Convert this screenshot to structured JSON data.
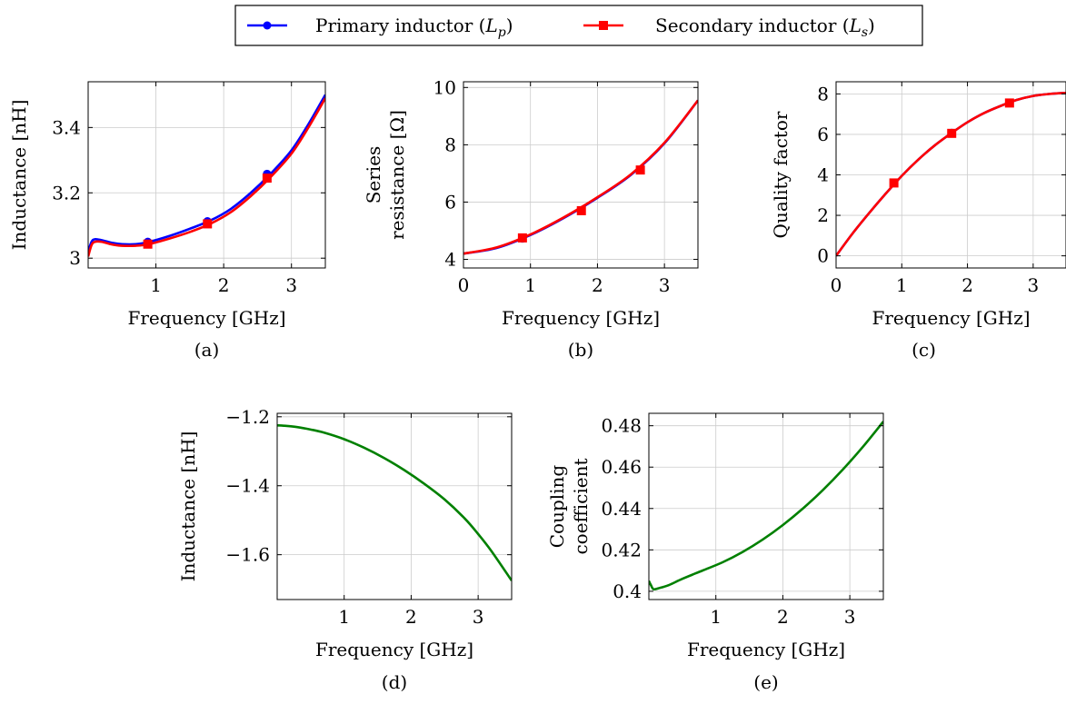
{
  "legend": {
    "entries": [
      {
        "label": "Primary inductor (L_p)",
        "color": "#0000ff",
        "marker": "circle"
      },
      {
        "label": "Secondary inductor (L_s)",
        "color": "#ff0000",
        "marker": "square"
      }
    ]
  },
  "colors": {
    "primary": "#0000ff",
    "secondary": "#ff0000",
    "mutual": "#008000",
    "grid": "#cccccc"
  },
  "chart_data": [
    {
      "id": "a",
      "type": "line",
      "caption": "(a)",
      "xlabel": "Frequency [GHz]",
      "ylabel": "Inductance [nH]",
      "xlim": [
        0,
        3.5
      ],
      "ylim": [
        2.97,
        3.54
      ],
      "xticks": [
        1,
        2,
        3
      ],
      "yticks": [
        3,
        3.2,
        3.4
      ],
      "xtick_labels": [
        "1",
        "2",
        "3"
      ],
      "ytick_labels": [
        "3",
        "3.2",
        "3.4"
      ],
      "grid": true,
      "series": [
        {
          "name": "Primary inductor (L_p)",
          "color": "#0000ff",
          "marker": "circle",
          "x": [
            0,
            0.05,
            0.1,
            0.2,
            0.35,
            0.5,
            0.7,
            0.9,
            1.2,
            1.5,
            1.8,
            2.1,
            2.4,
            2.7,
            3.0,
            3.25,
            3.5
          ],
          "y": [
            3.02,
            3.05,
            3.058,
            3.055,
            3.047,
            3.043,
            3.043,
            3.05,
            3.068,
            3.09,
            3.115,
            3.15,
            3.2,
            3.26,
            3.33,
            3.41,
            3.5
          ],
          "markers_x": [
            0.88,
            1.76,
            2.64
          ],
          "markers_y": [
            3.05,
            3.113,
            3.258
          ]
        },
        {
          "name": "Secondary inductor (L_s)",
          "color": "#ff0000",
          "marker": "square",
          "x": [
            0,
            0.05,
            0.1,
            0.2,
            0.35,
            0.5,
            0.7,
            0.9,
            1.2,
            1.5,
            1.8,
            2.1,
            2.4,
            2.7,
            3.0,
            3.25,
            3.5
          ],
          "y": [
            3.005,
            3.04,
            3.05,
            3.05,
            3.042,
            3.038,
            3.038,
            3.043,
            3.06,
            3.08,
            3.105,
            3.14,
            3.19,
            3.25,
            3.32,
            3.4,
            3.49
          ],
          "markers_x": [
            0.88,
            1.76,
            2.64
          ],
          "markers_y": [
            3.043,
            3.105,
            3.245
          ]
        }
      ]
    },
    {
      "id": "b",
      "type": "line",
      "caption": "(b)",
      "xlabel": "Frequency [GHz]",
      "ylabel_lines": [
        "Series",
        "resistance [Ω]"
      ],
      "xlim": [
        0,
        3.5
      ],
      "ylim": [
        3.7,
        10.2
      ],
      "xticks": [
        0,
        1,
        2,
        3
      ],
      "yticks": [
        4,
        6,
        8,
        10
      ],
      "xtick_labels": [
        "0",
        "1",
        "2",
        "3"
      ],
      "ytick_labels": [
        "4",
        "6",
        "8",
        "10"
      ],
      "grid": true,
      "series": [
        {
          "name": "Primary inductor (L_p)",
          "color": "#0000ff",
          "marker": "circle",
          "x": [
            0,
            0.5,
            1.0,
            1.5,
            2.0,
            2.5,
            3.0,
            3.5
          ],
          "y": [
            4.2,
            4.4,
            4.85,
            5.45,
            6.15,
            6.95,
            8.05,
            9.55
          ],
          "markers_x": [
            0.88,
            1.76,
            2.64
          ],
          "markers_y": [
            4.73,
            5.72,
            7.12
          ]
        },
        {
          "name": "Secondary inductor (L_s)",
          "color": "#ff0000",
          "marker": "square",
          "x": [
            0,
            0.5,
            1.0,
            1.5,
            2.0,
            2.5,
            3.0,
            3.5
          ],
          "y": [
            4.2,
            4.42,
            4.87,
            5.47,
            6.17,
            6.97,
            8.07,
            9.55
          ],
          "markers_x": [
            0.88,
            1.76,
            2.64
          ],
          "markers_y": [
            4.75,
            5.7,
            7.12
          ]
        }
      ]
    },
    {
      "id": "c",
      "type": "line",
      "caption": "(c)",
      "xlabel": "Frequency [GHz]",
      "ylabel": "Quality factor",
      "xlim": [
        0,
        3.5
      ],
      "ylim": [
        -0.6,
        8.6
      ],
      "xticks": [
        0,
        1,
        2,
        3
      ],
      "yticks": [
        0,
        2,
        4,
        6,
        8
      ],
      "xtick_labels": [
        "0",
        "1",
        "2",
        "3"
      ],
      "ytick_labels": [
        "0",
        "2",
        "4",
        "6",
        "8"
      ],
      "grid": true,
      "series": [
        {
          "name": "Primary inductor (L_p)",
          "color": "#0000ff",
          "marker": "circle",
          "x": [
            0,
            0.25,
            0.5,
            0.75,
            1.0,
            1.25,
            1.5,
            1.75,
            2.0,
            2.25,
            2.5,
            2.75,
            3.0,
            3.25,
            3.5
          ],
          "y": [
            0,
            1.1,
            2.1,
            3.05,
            3.95,
            4.75,
            5.45,
            6.05,
            6.6,
            7.05,
            7.4,
            7.7,
            7.9,
            8.0,
            8.05
          ],
          "markers_x": [
            0.88,
            1.76,
            2.64
          ],
          "markers_y": [
            3.6,
            6.07,
            7.55
          ]
        },
        {
          "name": "Secondary inductor (L_s)",
          "color": "#ff0000",
          "marker": "square",
          "x": [
            0,
            0.25,
            0.5,
            0.75,
            1.0,
            1.25,
            1.5,
            1.75,
            2.0,
            2.25,
            2.5,
            2.75,
            3.0,
            3.25,
            3.5
          ],
          "y": [
            0,
            1.1,
            2.1,
            3.05,
            3.95,
            4.75,
            5.45,
            6.05,
            6.6,
            7.05,
            7.4,
            7.7,
            7.9,
            8.0,
            8.05
          ],
          "markers_x": [
            0.88,
            1.76,
            2.64
          ],
          "markers_y": [
            3.6,
            6.05,
            7.55
          ]
        }
      ]
    },
    {
      "id": "d",
      "type": "line",
      "caption": "(d)",
      "xlabel": "Frequency [GHz]",
      "ylabel": "Inductance [nH]",
      "xlim": [
        0,
        3.5
      ],
      "ylim": [
        -1.73,
        -1.19
      ],
      "xticks": [
        1,
        2,
        3
      ],
      "yticks": [
        -1.6,
        -1.4,
        -1.2
      ],
      "xtick_labels": [
        "1",
        "2",
        "3"
      ],
      "ytick_labels": [
        "−1.6",
        "−1.4",
        "−1.2"
      ],
      "grid": true,
      "series": [
        {
          "color": "#008000",
          "x": [
            0,
            0.1,
            0.3,
            0.5,
            0.7,
            1.0,
            1.3,
            1.6,
            1.9,
            2.2,
            2.5,
            2.8,
            3.0,
            3.2,
            3.5
          ],
          "y": [
            -1.225,
            -1.226,
            -1.23,
            -1.237,
            -1.246,
            -1.265,
            -1.29,
            -1.32,
            -1.355,
            -1.395,
            -1.44,
            -1.495,
            -1.54,
            -1.59,
            -1.675
          ]
        }
      ]
    },
    {
      "id": "e",
      "type": "line",
      "caption": "(e)",
      "xlabel": "Frequency [GHz]",
      "ylabel_lines": [
        "Coupling",
        "coefficient"
      ],
      "xlim": [
        0,
        3.5
      ],
      "ylim": [
        0.396,
        0.486
      ],
      "xticks": [
        1,
        2,
        3
      ],
      "yticks": [
        0.4,
        0.42,
        0.44,
        0.46,
        0.48
      ],
      "xtick_labels": [
        "1",
        "2",
        "3"
      ],
      "ytick_labels": [
        "0.4",
        "0.42",
        "0.44",
        "0.46",
        "0.48"
      ],
      "grid": true,
      "series": [
        {
          "color": "#008000",
          "x": [
            0,
            0.03,
            0.07,
            0.15,
            0.3,
            0.5,
            0.8,
            1.1,
            1.4,
            1.7,
            2.0,
            2.3,
            2.6,
            2.9,
            3.2,
            3.5
          ],
          "y": [
            0.405,
            0.403,
            0.401,
            0.4015,
            0.403,
            0.406,
            0.41,
            0.414,
            0.419,
            0.425,
            0.432,
            0.44,
            0.449,
            0.459,
            0.47,
            0.482
          ]
        }
      ]
    }
  ]
}
